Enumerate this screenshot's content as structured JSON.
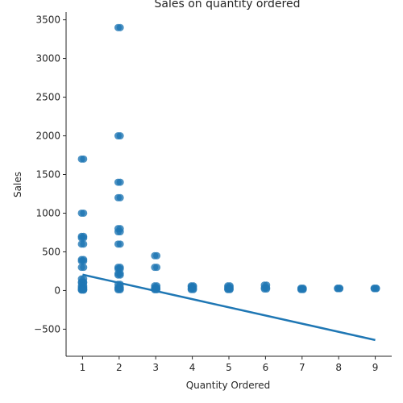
{
  "chart_data": {
    "type": "scatter",
    "title": "Sales on quantity ordered",
    "xlabel": "Quantity Ordered",
    "ylabel": "Sales",
    "xlim": [
      0.55,
      9.45
    ],
    "ylim": [
      -850,
      3600
    ],
    "xticks": [
      "1",
      "2",
      "3",
      "4",
      "5",
      "6",
      "7",
      "8",
      "9"
    ],
    "yticks": [
      "−500",
      "0",
      "500",
      "1000",
      "1500",
      "2000",
      "2500",
      "3000",
      "3500"
    ],
    "grid": false,
    "legend": "none",
    "point_color": "#1f77b4",
    "line_color": "#1f77b4",
    "points": [
      {
        "x": 1,
        "y": 1700
      },
      {
        "x": 1,
        "y": 1000
      },
      {
        "x": 1,
        "y": 700
      },
      {
        "x": 1,
        "y": 680
      },
      {
        "x": 1,
        "y": 600
      },
      {
        "x": 1,
        "y": 400
      },
      {
        "x": 1,
        "y": 380
      },
      {
        "x": 1,
        "y": 300
      },
      {
        "x": 1,
        "y": 150
      },
      {
        "x": 1,
        "y": 110
      },
      {
        "x": 1,
        "y": 100
      },
      {
        "x": 1,
        "y": 60
      },
      {
        "x": 1,
        "y": 40
      },
      {
        "x": 1,
        "y": 20
      },
      {
        "x": 1,
        "y": 12
      },
      {
        "x": 1,
        "y": 5
      },
      {
        "x": 2,
        "y": 3400
      },
      {
        "x": 2,
        "y": 2000
      },
      {
        "x": 2,
        "y": 1400
      },
      {
        "x": 2,
        "y": 1200
      },
      {
        "x": 2,
        "y": 800
      },
      {
        "x": 2,
        "y": 760
      },
      {
        "x": 2,
        "y": 600
      },
      {
        "x": 2,
        "y": 300
      },
      {
        "x": 2,
        "y": 280
      },
      {
        "x": 2,
        "y": 220
      },
      {
        "x": 2,
        "y": 200
      },
      {
        "x": 2,
        "y": 80
      },
      {
        "x": 2,
        "y": 40
      },
      {
        "x": 2,
        "y": 24
      },
      {
        "x": 2,
        "y": 10
      },
      {
        "x": 3,
        "y": 450
      },
      {
        "x": 3,
        "y": 300
      },
      {
        "x": 3,
        "y": 60
      },
      {
        "x": 3,
        "y": 36
      },
      {
        "x": 3,
        "y": 20
      },
      {
        "x": 3,
        "y": 10
      },
      {
        "x": 4,
        "y": 60
      },
      {
        "x": 4,
        "y": 48
      },
      {
        "x": 4,
        "y": 24
      },
      {
        "x": 4,
        "y": 12
      },
      {
        "x": 5,
        "y": 60
      },
      {
        "x": 5,
        "y": 40
      },
      {
        "x": 5,
        "y": 20
      },
      {
        "x": 5,
        "y": 12
      },
      {
        "x": 6,
        "y": 70
      },
      {
        "x": 6,
        "y": 36
      },
      {
        "x": 6,
        "y": 20
      },
      {
        "x": 7,
        "y": 30
      },
      {
        "x": 7,
        "y": 20
      },
      {
        "x": 7,
        "y": 12
      },
      {
        "x": 8,
        "y": 30
      },
      {
        "x": 8,
        "y": 24
      },
      {
        "x": 9,
        "y": 30
      },
      {
        "x": 9,
        "y": 24
      }
    ],
    "regression": {
      "x": [
        1,
        9
      ],
      "y": [
        205,
        -640
      ]
    }
  }
}
